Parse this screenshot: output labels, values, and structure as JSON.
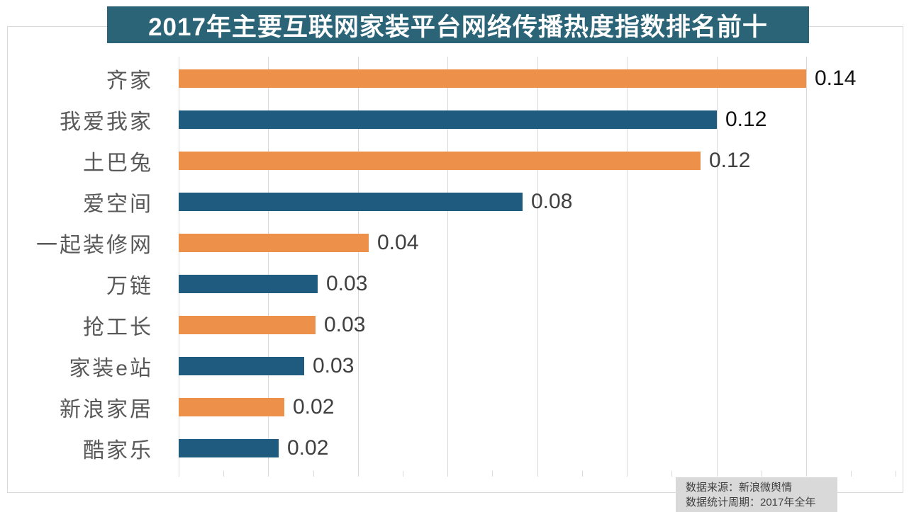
{
  "title": "2017年主要互联网家装平台网络传播热度指数排名前十",
  "chart_data": {
    "type": "bar",
    "orientation": "horizontal",
    "title": "2017年主要互联网家装平台网络传播热度指数排名前十",
    "categories": [
      "齐家",
      "我爱我家",
      "土巴兔",
      "爱空间",
      "一起装修网",
      "万链",
      "抢工长",
      "家装e站",
      "新浪家居",
      "酷家乐"
    ],
    "values": [
      0.14,
      0.12,
      0.12,
      0.08,
      0.04,
      0.03,
      0.03,
      0.03,
      0.02,
      0.02
    ],
    "value_labels": [
      "0.14",
      "0.12",
      "0.12",
      "0.08",
      "0.04",
      "0.03",
      "0.03",
      "0.03",
      "0.02",
      "0.02"
    ],
    "precise_values": [
      0.14,
      0.12,
      0.1165,
      0.0768,
      0.0424,
      0.031,
      0.0306,
      0.028,
      0.0236,
      0.0223
    ],
    "bar_colors": [
      "#ED9049",
      "#1F5B7E",
      "#ED9049",
      "#1F5B7E",
      "#ED9049",
      "#1F5B7E",
      "#ED9049",
      "#1F5B7E",
      "#ED9049",
      "#1F5B7E"
    ],
    "value_label_colors": [
      "#111111",
      "#111111",
      "#404040",
      "#404040",
      "#404040",
      "#404040",
      "#404040",
      "#404040",
      "#404040",
      "#404040"
    ],
    "xlim": [
      0,
      0.162
    ],
    "gridline_interval": 0.02,
    "minor_tick_interval": 0.01,
    "grid": true,
    "legend": false,
    "xlabel": "",
    "ylabel": ""
  },
  "footer": {
    "source": "数据来源：新浪微舆情",
    "period": "数据统计周期：2017年全年"
  },
  "colors": {
    "background": "#FFFFFF",
    "title_bg": "#2B6377",
    "title_text": "#FFFFFF",
    "bar_orange": "#ED9049",
    "bar_blue": "#1F5B7E",
    "category_label": "#595959",
    "value_label_dark": "#111111",
    "value_label": "#404040",
    "gridline": "#D9D9D9",
    "frame_border": "#D9D9D9",
    "footer_bg": "#D9D9D9",
    "footer_text": "#404040"
  }
}
